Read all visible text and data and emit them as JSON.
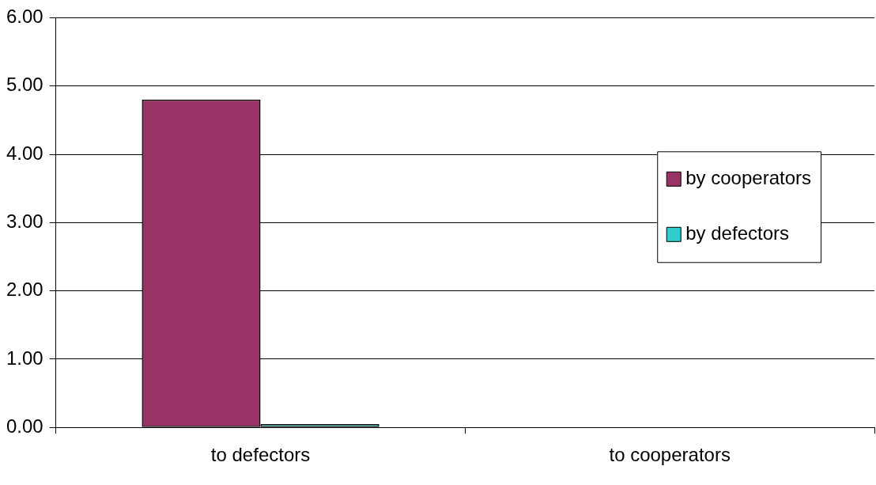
{
  "chart_data": {
    "type": "bar",
    "categories": [
      "to defectors",
      "to cooperators"
    ],
    "series": [
      {
        "name": "by cooperators",
        "color": "#993366",
        "values": [
          4.8,
          0
        ]
      },
      {
        "name": "by defectors",
        "color": "#33cccc",
        "values": [
          0.05,
          0
        ]
      }
    ],
    "ylim": [
      0,
      6
    ],
    "yticks": [
      {
        "value": 0,
        "label": "0.00"
      },
      {
        "value": 1,
        "label": "1.00"
      },
      {
        "value": 2,
        "label": "2.00"
      },
      {
        "value": 3,
        "label": "3.00"
      },
      {
        "value": 4,
        "label": "4.00"
      },
      {
        "value": 5,
        "label": "5.00"
      },
      {
        "value": 6,
        "label": "6.00"
      }
    ],
    "grid": "y",
    "legend": "right"
  }
}
